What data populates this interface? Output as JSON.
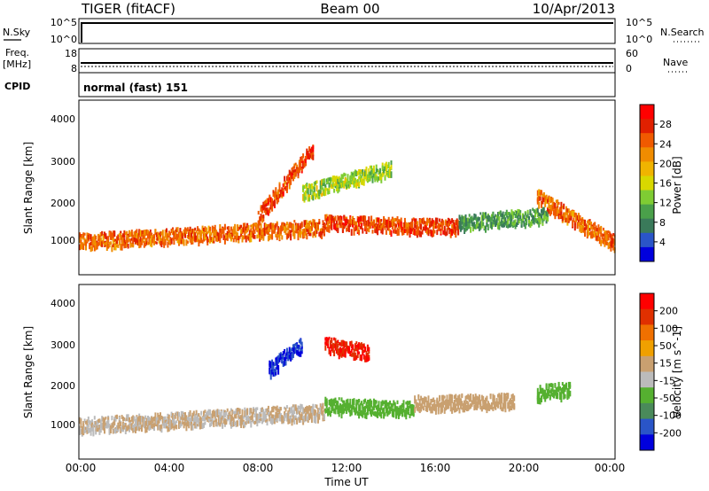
{
  "header": {
    "station": "TIGER (fitACF)",
    "beam": "Beam 00",
    "date": "10/Apr/2013"
  },
  "noise_panel": {
    "left_label": "N.Sky",
    "right_label": "N.Search",
    "left_ticks": [
      "10^5",
      "10^0"
    ],
    "right_ticks": [
      "10^5",
      "10^0"
    ]
  },
  "freq_panel": {
    "left_label_line1": "Freq.",
    "left_label_line2": "[MHz]",
    "right_label": "Nave",
    "left_ticks": [
      "18",
      "8"
    ],
    "right_ticks": [
      "60",
      "0"
    ]
  },
  "cpid_panel": {
    "label": "CPID",
    "mode": "normal (fast) 151"
  },
  "axes": {
    "ylabel": "Slant Range [km]",
    "xlabel": "Time UT",
    "yticks": [
      "4000",
      "3000",
      "2000",
      "1000"
    ],
    "xticks": [
      "00:00",
      "04:00",
      "08:00",
      "12:00",
      "16:00",
      "20:00",
      "00:00"
    ]
  },
  "colors": {
    "power": [
      "#0000dd",
      "#2a55c8",
      "#3a7a5a",
      "#4aa04a",
      "#7fcc33",
      "#d8d800",
      "#f0b400",
      "#f08c00",
      "#f05a00",
      "#e02000",
      "#ff0000"
    ],
    "velocity": [
      "#0000dd",
      "#2a55c8",
      "#4a8a5a",
      "#55b030",
      "#bbbbbb",
      "#c9a070",
      "#f0a000",
      "#f07000",
      "#e03000",
      "#ff0000"
    ]
  },
  "chart_data": [
    {
      "type": "heatmap",
      "title": "",
      "xlabel": "Time UT",
      "ylabel": "Slant Range [km]",
      "xlim": [
        0,
        24
      ],
      "ylim": [
        200,
        4500
      ],
      "colorbar": {
        "label": "Power [dB]",
        "range": [
          0,
          32
        ],
        "ticks": [
          "28",
          "24",
          "20",
          "16",
          "12",
          "8",
          "4"
        ]
      },
      "features": [
        {
          "t0": 0.0,
          "t1": 11.0,
          "r_start": 1000,
          "r_end": 1350,
          "value": 24
        },
        {
          "t0": 11.0,
          "t1": 17.0,
          "r_start": 1450,
          "r_end": 1350,
          "value": 26
        },
        {
          "t0": 17.0,
          "t1": 21.0,
          "r_start": 1450,
          "r_end": 1650,
          "value": 10
        },
        {
          "t0": 20.5,
          "t1": 24.0,
          "r_start": 2100,
          "r_end": 950,
          "value": 24
        },
        {
          "t0": 8.0,
          "t1": 10.5,
          "r_start": 1600,
          "r_end": 3300,
          "value": 26
        },
        {
          "t0": 10.0,
          "t1": 14.0,
          "r_start": 2200,
          "r_end": 2800,
          "value": 14
        }
      ]
    },
    {
      "type": "heatmap",
      "title": "",
      "xlabel": "Time UT",
      "ylabel": "Slant Range [km]",
      "xlim": [
        0,
        24
      ],
      "ylim": [
        200,
        4500
      ],
      "colorbar": {
        "label": "Velocity [m s^-1]",
        "range": [
          -250,
          250
        ],
        "ticks": [
          "200",
          "100",
          "50",
          "15",
          "-15",
          "-50",
          "-100",
          "-200"
        ]
      },
      "features": [
        {
          "t0": 0.0,
          "t1": 11.0,
          "r_start": 1000,
          "r_end": 1350,
          "value": 0
        },
        {
          "t0": 11.0,
          "t1": 15.0,
          "r_start": 1500,
          "r_end": 1400,
          "value": -60
        },
        {
          "t0": 15.0,
          "t1": 19.5,
          "r_start": 1550,
          "r_end": 1600,
          "value": 40
        },
        {
          "t0": 8.5,
          "t1": 10.0,
          "r_start": 2400,
          "r_end": 3000,
          "value": -200
        },
        {
          "t0": 11.0,
          "t1": 13.0,
          "r_start": 3000,
          "r_end": 2800,
          "value": 200
        },
        {
          "t0": 20.5,
          "t1": 22.0,
          "r_start": 1800,
          "r_end": 1900,
          "value": -80
        }
      ]
    }
  ]
}
